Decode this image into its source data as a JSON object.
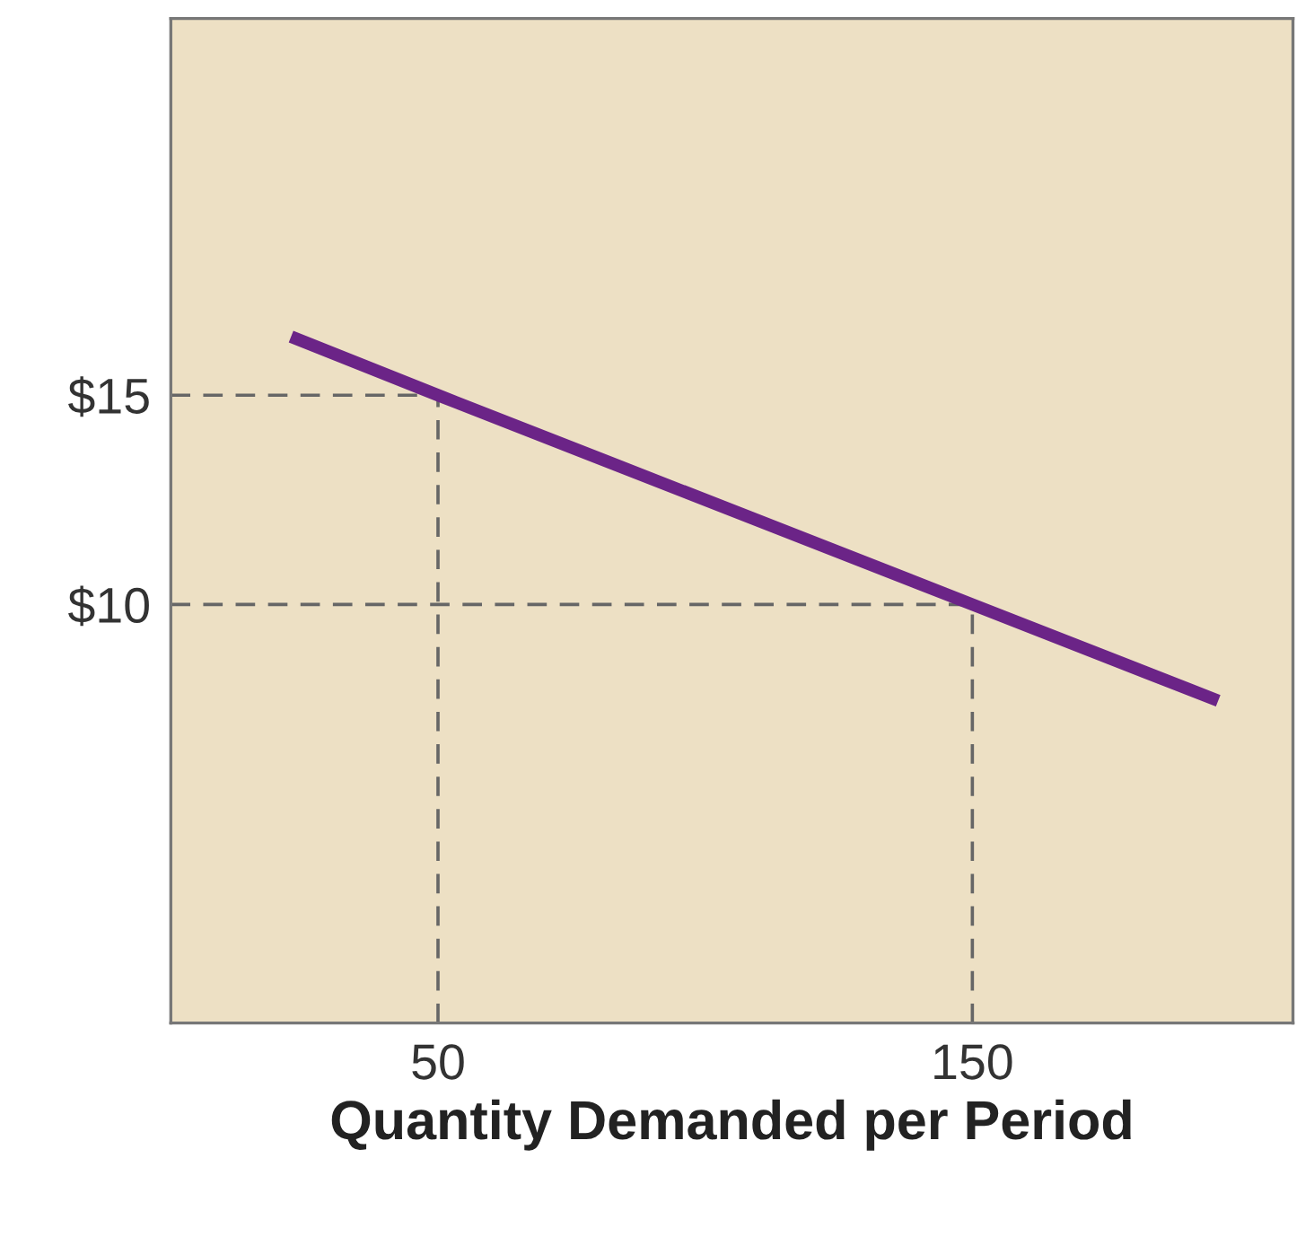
{
  "chart_data": {
    "type": "line",
    "xlabel": "Quantity Demanded per Period",
    "x": [
      22.5,
      50,
      150,
      196
    ],
    "series": [
      {
        "color": "#6b2487",
        "values": [
          16.4,
          15,
          10,
          7.7
        ]
      }
    ],
    "xlim": [
      0,
      210
    ],
    "ylim": [
      0,
      24
    ],
    "xticks": [
      50,
      150
    ],
    "yticks": [
      {
        "value": 15,
        "label": "$15"
      },
      {
        "value": 10,
        "label": "$10"
      }
    ],
    "ref_lines": [
      {
        "axis": "y",
        "value": 15,
        "color": "#666666",
        "line_style": "dashed"
      },
      {
        "axis": "y",
        "value": 10,
        "color": "#666666",
        "line_style": "dashed"
      },
      {
        "axis": "x",
        "value": 50,
        "color": "#666666",
        "line_style": "dashed"
      },
      {
        "axis": "x",
        "value": 150,
        "color": "#666666",
        "line_style": "dashed"
      }
    ],
    "grid": false,
    "marker": "none",
    "line_style": "solid"
  }
}
